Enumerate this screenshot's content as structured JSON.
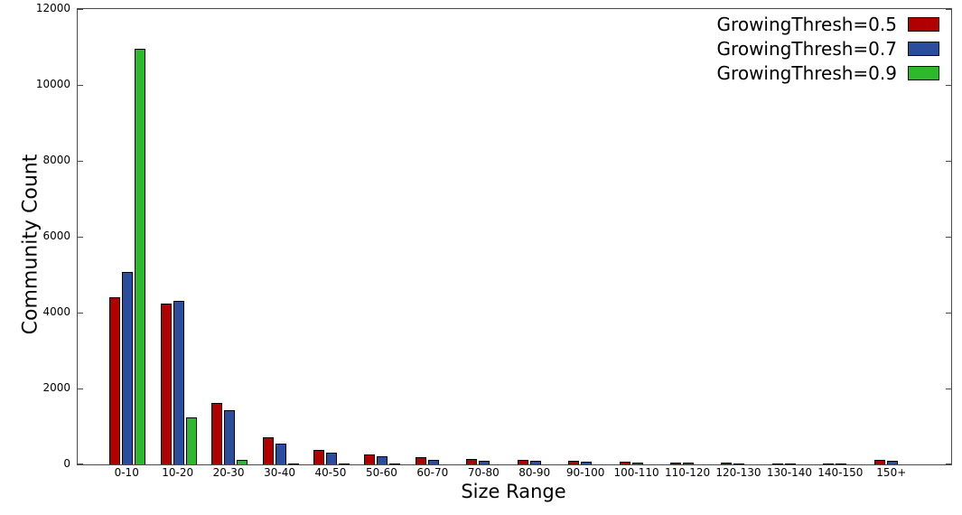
{
  "chart_data": {
    "type": "bar",
    "title": "",
    "xlabel": "Size Range",
    "ylabel": "Community Count",
    "ylim": [
      0,
      12000
    ],
    "yticks": [
      0,
      2000,
      4000,
      6000,
      8000,
      10000,
      12000
    ],
    "grid": false,
    "legend_position": "top-right-inside",
    "background_color": "#ffffff",
    "frame_color": "#4a4a4a",
    "categories": [
      "0-10",
      "10-20",
      "20-30",
      "30-40",
      "40-50",
      "50-60",
      "60-70",
      "70-80",
      "80-90",
      "90-100",
      "100-110",
      "110-120",
      "120-130",
      "130-140",
      "140-150",
      "150+"
    ],
    "series": [
      {
        "name": "GrowingThresh=0.5",
        "color": "#b00000",
        "values": [
          4400,
          4250,
          1620,
          720,
          380,
          260,
          185,
          140,
          130,
          100,
          65,
          55,
          45,
          35,
          20,
          110
        ]
      },
      {
        "name": "GrowingThresh=0.7",
        "color": "#2a4d9e",
        "values": [
          5080,
          4300,
          1430,
          550,
          310,
          215,
          125,
          100,
          95,
          75,
          50,
          45,
          35,
          25,
          15,
          90
        ]
      },
      {
        "name": "GrowingThresh=0.9",
        "color": "#2eb82e",
        "values": [
          10950,
          1250,
          120,
          30,
          10,
          5,
          0,
          0,
          0,
          0,
          0,
          0,
          0,
          0,
          0,
          0
        ]
      }
    ]
  }
}
